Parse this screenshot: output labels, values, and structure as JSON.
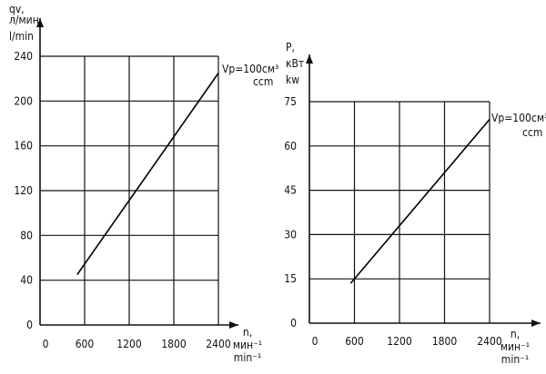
{
  "chart_data": [
    {
      "type": "line",
      "title": "",
      "ylabel": [
        "qv,",
        "л/мин",
        "l/min"
      ],
      "xlabel": [
        "n,",
        "мин⁻¹",
        "min⁻¹"
      ],
      "xlim": [
        0,
        2400
      ],
      "ylim": [
        0,
        240
      ],
      "x_ticks": [
        0,
        600,
        1200,
        1800,
        2400
      ],
      "y_ticks": [
        0,
        40,
        80,
        120,
        160,
        200,
        240
      ],
      "grid": true,
      "series": [
        {
          "name": "Vp=100см³ ccm",
          "label_main": "Vp=100см³",
          "label_sub": "ccm",
          "x": [
            500,
            2400
          ],
          "y": [
            45,
            225
          ]
        }
      ]
    },
    {
      "type": "line",
      "title": "",
      "ylabel": [
        "P,",
        "кВт",
        "kw"
      ],
      "xlabel": [
        "n,",
        "мин⁻¹",
        "min⁻¹"
      ],
      "xlim": [
        0,
        2400
      ],
      "ylim": [
        0,
        75
      ],
      "x_ticks": [
        0,
        600,
        1200,
        1800,
        2400
      ],
      "y_ticks": [
        0,
        15,
        30,
        45,
        60,
        75
      ],
      "grid": true,
      "series": [
        {
          "name": "Vp=100см³ ccm",
          "label_main": "Vp=100см³",
          "label_sub": "ccm",
          "x": [
            550,
            2400
          ],
          "y": [
            13.5,
            69
          ]
        }
      ]
    }
  ]
}
